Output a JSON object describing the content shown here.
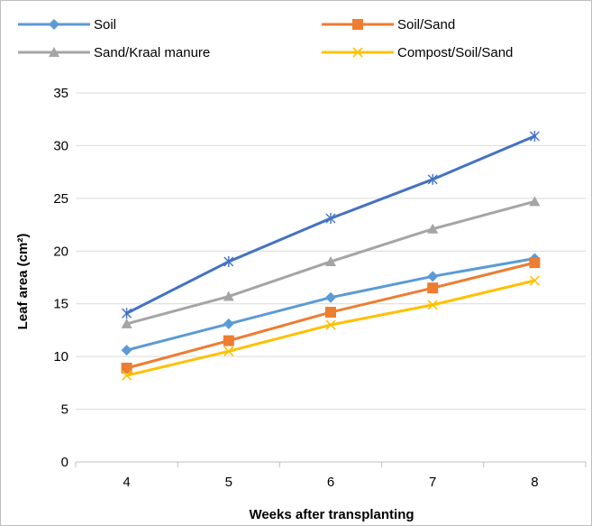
{
  "chart_data": {
    "type": "line",
    "title": "",
    "xlabel": "Weeks after transplanting",
    "ylabel": "Leaf area (cm²)",
    "categories": [
      "4",
      "5",
      "6",
      "7",
      "8"
    ],
    "ylim": [
      0,
      35
    ],
    "yticks": [
      "0",
      "5",
      "10",
      "15",
      "20",
      "25",
      "30",
      "35"
    ],
    "grid": true,
    "legend_position": "top",
    "series": [
      {
        "name": "Soil",
        "values": [
          10.6,
          13.1,
          15.6,
          17.6,
          19.3
        ],
        "color": "#5b9bd5",
        "marker": "diamond"
      },
      {
        "name": "Soil/Sand",
        "values": [
          8.9,
          11.5,
          14.2,
          16.5,
          18.9
        ],
        "color": "#ed7d31",
        "marker": "square"
      },
      {
        "name": "Sand/Kraal manure",
        "values": [
          13.1,
          15.7,
          19.0,
          22.1,
          24.7
        ],
        "color": "#a5a5a5",
        "marker": "triangle"
      },
      {
        "name": "Compost/Soil/Sand",
        "values": [
          8.2,
          10.5,
          13.0,
          14.9,
          17.2
        ],
        "color": "#ffc000",
        "marker": "x"
      },
      {
        "name": "",
        "values": [
          14.1,
          19.0,
          23.1,
          26.8,
          30.9
        ],
        "color": "#4472c4",
        "marker": "star"
      }
    ]
  }
}
